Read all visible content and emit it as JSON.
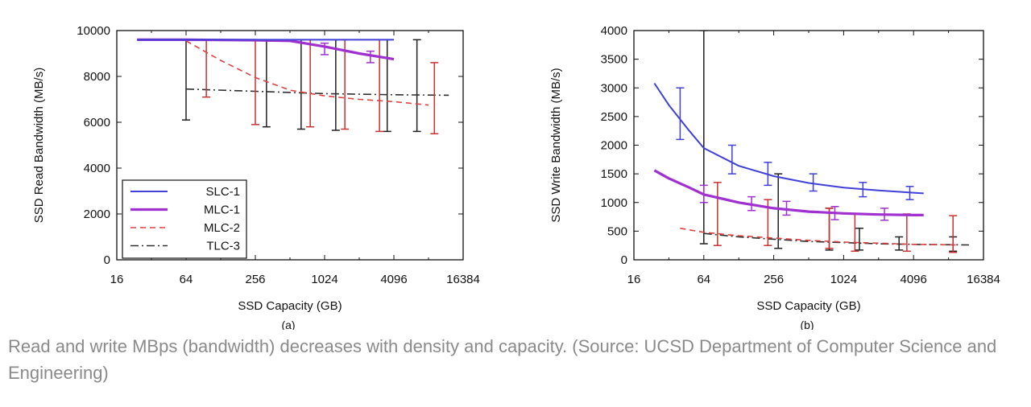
{
  "caption": "Read and write MBps (bandwidth) decreases with density and capacity. (Source: UCSD Department of Computer Science and Engineering)",
  "colors": {
    "SLC-1": "#4040d8",
    "MLC-1": "#a030d0",
    "MLC-2": "#e04040",
    "TLC-3": "#303030",
    "MLC-2-bars": "#c83232",
    "TLC-3-bars": "#202020"
  },
  "chart_data": [
    {
      "type": "line",
      "sublabel": "(a)",
      "xlabel": "SSD Capacity (GB)",
      "ylabel": "SSD Read Bandwidth (MB/s)",
      "xscale": "log2",
      "xlim": [
        16,
        16384
      ],
      "ylim": [
        0,
        10000
      ],
      "xticks": [
        "16",
        "64",
        "256",
        "1024",
        "4096",
        "16384"
      ],
      "yticks": [
        "0",
        "2000",
        "4000",
        "6000",
        "8000",
        "10000"
      ],
      "grid": false,
      "legend_position": "bottom-left",
      "series": [
        {
          "name": "SLC-1",
          "style": "solid",
          "points": [
            [
              24,
              9600
            ],
            [
              64,
              9600
            ],
            [
              256,
              9600
            ],
            [
              1024,
              9600
            ],
            [
              4096,
              9600
            ]
          ],
          "errorbars": []
        },
        {
          "name": "MLC-1",
          "style": "solid-thick",
          "points": [
            [
              24,
              9600
            ],
            [
              64,
              9600
            ],
            [
              256,
              9580
            ],
            [
              512,
              9550
            ],
            [
              1024,
              9300
            ],
            [
              2048,
              9000
            ],
            [
              4096,
              8750
            ]
          ],
          "errorbars": [
            [
              1024,
              9200,
              8950,
              9450
            ],
            [
              2560,
              8850,
              8600,
              9100
            ]
          ]
        },
        {
          "name": "MLC-2",
          "style": "dashed",
          "points": [
            [
              64,
              9550
            ],
            [
              128,
              8700
            ],
            [
              256,
              7950
            ],
            [
              512,
              7400
            ],
            [
              1024,
              7150
            ],
            [
              2048,
              7000
            ],
            [
              4096,
              6900
            ],
            [
              8192,
              6750
            ]
          ],
          "errorbars": [
            [
              96,
              8500,
              7100,
              9600
            ],
            [
              256,
              7800,
              5900,
              9600
            ],
            [
              768,
              7400,
              5800,
              9600
            ],
            [
              1536,
              7200,
              5700,
              9600
            ],
            [
              3072,
              7000,
              5600,
              9600
            ],
            [
              9216,
              6800,
              5500,
              8600
            ]
          ]
        },
        {
          "name": "TLC-3",
          "style": "dash-dot",
          "points": [
            [
              64,
              7450
            ],
            [
              256,
              7350
            ],
            [
              1024,
              7250
            ],
            [
              4096,
              7200
            ],
            [
              12288,
              7180
            ]
          ],
          "errorbars": [
            [
              64,
              7450,
              6100,
              9600
            ],
            [
              320,
              7350,
              5800,
              9600
            ],
            [
              640,
              7300,
              5700,
              9600
            ],
            [
              1280,
              7250,
              5650,
              9600
            ],
            [
              3584,
              7200,
              5600,
              9600
            ],
            [
              6500,
              7200,
              5600,
              9600
            ]
          ]
        }
      ]
    },
    {
      "type": "line",
      "sublabel": "(b)",
      "xlabel": "SSD Capacity (GB)",
      "ylabel": "SSD Write Bandwidth (MB/s)",
      "xscale": "log2",
      "xlim": [
        16,
        16384
      ],
      "ylim": [
        0,
        4000
      ],
      "xticks": [
        "16",
        "64",
        "256",
        "1024",
        "4096",
        "16384"
      ],
      "yticks": [
        "0",
        "500",
        "1000",
        "1500",
        "2000",
        "2500",
        "3000",
        "3500",
        "4000"
      ],
      "grid": false,
      "series": [
        {
          "name": "SLC-1",
          "style": "solid",
          "points": [
            [
              24,
              3080
            ],
            [
              32,
              2700
            ],
            [
              48,
              2250
            ],
            [
              64,
              1950
            ],
            [
              128,
              1640
            ],
            [
              256,
              1460
            ],
            [
              512,
              1340
            ],
            [
              1024,
              1260
            ],
            [
              2048,
              1210
            ],
            [
              4096,
              1170
            ],
            [
              5000,
              1160
            ]
          ],
          "errorbars": [
            [
              40,
              2450,
              2100,
              3000
            ],
            [
              112,
              1750,
              1500,
              2000
            ],
            [
              228,
              1500,
              1300,
              1700
            ],
            [
              560,
              1350,
              1200,
              1500
            ],
            [
              1500,
              1230,
              1100,
              1350
            ],
            [
              3800,
              1150,
              1050,
              1280
            ]
          ]
        },
        {
          "name": "MLC-1",
          "style": "solid-thick",
          "points": [
            [
              24,
              1560
            ],
            [
              32,
              1420
            ],
            [
              48,
              1260
            ],
            [
              64,
              1140
            ],
            [
              128,
              1000
            ],
            [
              256,
              900
            ],
            [
              512,
              840
            ],
            [
              1024,
              810
            ],
            [
              2048,
              790
            ],
            [
              4096,
              780
            ],
            [
              5000,
              780
            ]
          ],
          "errorbars": [
            [
              64,
              1150,
              1000,
              1300
            ],
            [
              165,
              980,
              860,
              1100
            ],
            [
              330,
              900,
              780,
              1020
            ],
            [
              860,
              820,
              700,
              930
            ],
            [
              2300,
              800,
              690,
              900
            ]
          ]
        },
        {
          "name": "MLC-2",
          "style": "dashed",
          "points": [
            [
              40,
              550
            ],
            [
              64,
              480
            ],
            [
              128,
              420
            ],
            [
              256,
              380
            ],
            [
              512,
              340
            ],
            [
              1024,
              310
            ],
            [
              2048,
              290
            ],
            [
              4096,
              270
            ],
            [
              10240,
              260
            ]
          ],
          "errorbars": [
            [
              84,
              600,
              250,
              1350
            ],
            [
              228,
              560,
              250,
              1050
            ],
            [
              770,
              500,
              200,
              900
            ],
            [
              1280,
              480,
              150,
              800
            ],
            [
              3584,
              450,
              150,
              800
            ],
            [
              8960,
              400,
              130,
              770
            ]
          ]
        },
        {
          "name": "TLC-3",
          "style": "dash-dot",
          "points": [
            [
              64,
              460
            ],
            [
              128,
              400
            ],
            [
              256,
              360
            ],
            [
              512,
              320
            ],
            [
              1024,
              300
            ],
            [
              2048,
              280
            ],
            [
              4096,
              270
            ],
            [
              12288,
              260
            ]
          ],
          "errorbars": [
            [
              64,
              460,
              280,
              4000
            ],
            [
              280,
              380,
              200,
              1500
            ],
            [
              770,
              330,
              170,
              900
            ],
            [
              1400,
              300,
              170,
              550
            ],
            [
              3072,
              270,
              170,
              400
            ],
            [
              8960,
              260,
              150,
              400
            ]
          ]
        }
      ]
    }
  ]
}
